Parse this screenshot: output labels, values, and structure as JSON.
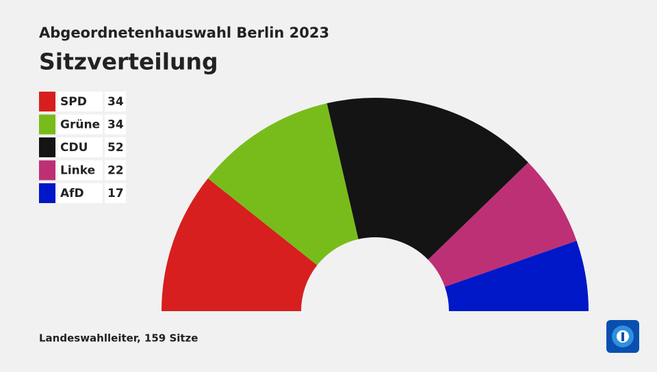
{
  "chart_data": {
    "type": "semicircle",
    "supertitle": "Abgeordnetenhauswahl Berlin 2023",
    "title": "Sitzverteilung",
    "categories": [
      "SPD",
      "Grüne",
      "CDU",
      "Linke",
      "AfD"
    ],
    "values": [
      34,
      34,
      52,
      22,
      17
    ],
    "colors": [
      "#d71f1f",
      "#78bc1b",
      "#141414",
      "#bd3075",
      "#0018c8"
    ],
    "source": "Landeswahlleiter, 159 Sitze"
  }
}
